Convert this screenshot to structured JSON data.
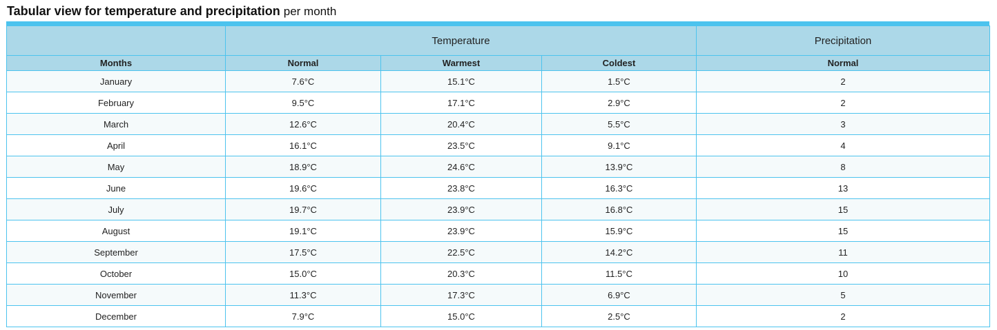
{
  "title": {
    "bold": "Tabular view for temperature and precipitation",
    "normal": "per month"
  },
  "table": {
    "groups": {
      "blank": "",
      "temperature": "Temperature",
      "precipitation": "Precipitation"
    },
    "columns": {
      "months": "Months",
      "normal": "Normal",
      "warmest": "Warmest",
      "coldest": "Coldest",
      "precip_normal": "Normal"
    },
    "rows": [
      {
        "month": "January",
        "normal": "7.6°C",
        "warmest": "15.1°C",
        "coldest": "1.5°C",
        "precip": "2"
      },
      {
        "month": "February",
        "normal": "9.5°C",
        "warmest": "17.1°C",
        "coldest": "2.9°C",
        "precip": "2"
      },
      {
        "month": "March",
        "normal": "12.6°C",
        "warmest": "20.4°C",
        "coldest": "5.5°C",
        "precip": "3"
      },
      {
        "month": "April",
        "normal": "16.1°C",
        "warmest": "23.5°C",
        "coldest": "9.1°C",
        "precip": "4"
      },
      {
        "month": "May",
        "normal": "18.9°C",
        "warmest": "24.6°C",
        "coldest": "13.9°C",
        "precip": "8"
      },
      {
        "month": "June",
        "normal": "19.6°C",
        "warmest": "23.8°C",
        "coldest": "16.3°C",
        "precip": "13"
      },
      {
        "month": "July",
        "normal": "19.7°C",
        "warmest": "23.9°C",
        "coldest": "16.8°C",
        "precip": "15"
      },
      {
        "month": "August",
        "normal": "19.1°C",
        "warmest": "23.9°C",
        "coldest": "15.9°C",
        "precip": "15"
      },
      {
        "month": "September",
        "normal": "17.5°C",
        "warmest": "22.5°C",
        "coldest": "14.2°C",
        "precip": "11"
      },
      {
        "month": "October",
        "normal": "15.0°C",
        "warmest": "20.3°C",
        "coldest": "11.5°C",
        "precip": "10"
      },
      {
        "month": "November",
        "normal": "11.3°C",
        "warmest": "17.3°C",
        "coldest": "6.9°C",
        "precip": "5"
      },
      {
        "month": "December",
        "normal": "7.9°C",
        "warmest": "15.0°C",
        "coldest": "2.5°C",
        "precip": "2"
      }
    ]
  },
  "colors": {
    "accent": "#4cc3ee",
    "header_bg": "#acd8e8",
    "row_alt": "#f5fafb"
  }
}
